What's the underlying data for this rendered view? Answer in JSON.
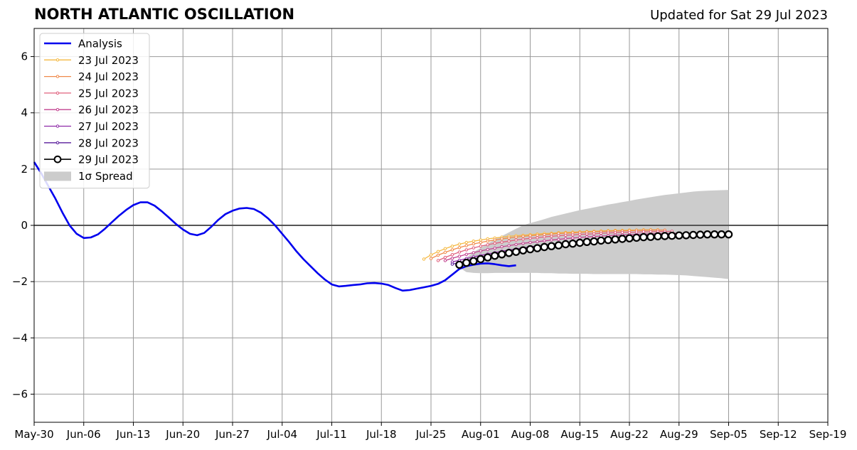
{
  "chart_data": {
    "type": "line",
    "title": "NORTH ATLANTIC OSCILLATION",
    "subtitle": "Updated for Sat 29 Jul 2023",
    "xlabel": "",
    "ylabel": "",
    "ylim": [
      -7,
      7
    ],
    "xlim": [
      "2023-05-30",
      "2023-09-19"
    ],
    "x_tick_labels": [
      "May-30",
      "Jun-06",
      "Jun-13",
      "Jun-20",
      "Jun-27",
      "Jul-04",
      "Jul-11",
      "Jul-18",
      "Jul-25",
      "Aug-01",
      "Aug-08",
      "Aug-15",
      "Aug-22",
      "Aug-29",
      "Sep-05",
      "Sep-12",
      "Sep-19"
    ],
    "y_ticks": [
      -6,
      -4,
      -2,
      0,
      2,
      4,
      6
    ],
    "y_tick_labels": [
      "−6",
      "−4",
      "−2",
      "0",
      "2",
      "4",
      "6"
    ],
    "grid": true,
    "legend_placement": "top-left",
    "colors": {
      "analysis": "#0000ee",
      "spread": "#cccccc",
      "grid": "#999999",
      "zero_line": "#555555"
    },
    "analysis": {
      "name": "Analysis",
      "start_date": "2023-05-30",
      "values": [
        2.25,
        1.85,
        1.4,
        0.95,
        0.45,
        0.0,
        -0.3,
        -0.45,
        -0.43,
        -0.32,
        -0.12,
        0.12,
        0.35,
        0.55,
        0.72,
        0.82,
        0.82,
        0.7,
        0.5,
        0.28,
        0.05,
        -0.15,
        -0.3,
        -0.35,
        -0.27,
        -0.05,
        0.2,
        0.4,
        0.52,
        0.6,
        0.62,
        0.58,
        0.45,
        0.25,
        0.0,
        -0.3,
        -0.6,
        -0.92,
        -1.2,
        -1.45,
        -1.7,
        -1.92,
        -2.1,
        -2.17,
        -2.15,
        -2.12,
        -2.1,
        -2.06,
        -2.05,
        -2.07,
        -2.12,
        -2.23,
        -2.32,
        -2.3,
        -2.25,
        -2.2,
        -2.15,
        -2.08,
        -1.95,
        -1.75,
        -1.55,
        -1.45,
        -1.4,
        -1.36,
        -1.35,
        -1.38,
        -1.42,
        -1.45,
        -1.42
      ]
    },
    "spread": {
      "name": "1σ Spread",
      "start_date": "2023-07-29",
      "upper": [
        -1.35,
        -1.15,
        -0.95,
        -0.8,
        -0.65,
        -0.5,
        -0.38,
        -0.25,
        -0.12,
        0.0,
        0.08,
        0.15,
        0.22,
        0.3,
        0.36,
        0.42,
        0.48,
        0.54,
        0.59,
        0.64,
        0.69,
        0.74,
        0.78,
        0.83,
        0.87,
        0.92,
        0.96,
        1.0,
        1.04,
        1.08,
        1.11,
        1.14,
        1.17,
        1.2,
        1.22,
        1.23,
        1.24,
        1.25,
        1.26
      ],
      "lower": [
        -1.5,
        -1.66,
        -1.69,
        -1.7,
        -1.7,
        -1.69,
        -1.69,
        -1.69,
        -1.69,
        -1.69,
        -1.69,
        -1.69,
        -1.7,
        -1.7,
        -1.71,
        -1.71,
        -1.72,
        -1.72,
        -1.72,
        -1.73,
        -1.73,
        -1.73,
        -1.73,
        -1.73,
        -1.73,
        -1.73,
        -1.74,
        -1.74,
        -1.75,
        -1.75,
        -1.76,
        -1.77,
        -1.78,
        -1.8,
        -1.82,
        -1.84,
        -1.86,
        -1.88,
        -1.91
      ]
    },
    "forecasts": [
      {
        "name": "23 Jul 2023",
        "color": "#f5b942",
        "start_date": "2023-07-24",
        "values": [
          -1.2,
          -1.05,
          -0.93,
          -0.83,
          -0.74,
          -0.67,
          -0.61,
          -0.56,
          -0.52,
          -0.48,
          -0.45,
          -0.42,
          -0.39,
          -0.37,
          -0.35,
          -0.33,
          -0.31,
          -0.29,
          -0.28,
          -0.26,
          -0.25,
          -0.24,
          -0.23,
          -0.22,
          -0.21,
          -0.2,
          -0.19,
          -0.18,
          -0.18,
          -0.17,
          -0.17,
          -0.16,
          -0.16,
          -0.16
        ]
      },
      {
        "name": "24 Jul 2023",
        "color": "#f08a4b",
        "start_date": "2023-07-25",
        "values": [
          -1.18,
          -1.06,
          -0.96,
          -0.87,
          -0.79,
          -0.72,
          -0.66,
          -0.61,
          -0.56,
          -0.52,
          -0.48,
          -0.45,
          -0.42,
          -0.39,
          -0.37,
          -0.35,
          -0.33,
          -0.31,
          -0.29,
          -0.28,
          -0.27,
          -0.25,
          -0.24,
          -0.23,
          -0.22,
          -0.21,
          -0.2,
          -0.2,
          -0.19,
          -0.18,
          -0.18,
          -0.17,
          -0.17,
          -0.17
        ]
      },
      {
        "name": "25 Jul 2023",
        "color": "#e0607e",
        "start_date": "2023-07-26",
        "values": [
          -1.25,
          -1.14,
          -1.04,
          -0.95,
          -0.87,
          -0.8,
          -0.74,
          -0.69,
          -0.64,
          -0.6,
          -0.56,
          -0.52,
          -0.49,
          -0.46,
          -0.44,
          -0.41,
          -0.39,
          -0.37,
          -0.35,
          -0.34,
          -0.32,
          -0.31,
          -0.3,
          -0.28,
          -0.27,
          -0.26,
          -0.25,
          -0.25,
          -0.24,
          -0.23,
          -0.23,
          -0.22,
          -0.22,
          -0.21
        ]
      },
      {
        "name": "26 Jul 2023",
        "color": "#c2428f",
        "start_date": "2023-07-27",
        "values": [
          -1.25,
          -1.17,
          -1.1,
          -1.03,
          -0.97,
          -0.91,
          -0.86,
          -0.81,
          -0.76,
          -0.72,
          -0.68,
          -0.64,
          -0.61,
          -0.58,
          -0.55,
          -0.52,
          -0.5,
          -0.47,
          -0.45,
          -0.43,
          -0.41,
          -0.4,
          -0.38,
          -0.37,
          -0.35,
          -0.34,
          -0.33,
          -0.32,
          -0.31,
          -0.3,
          -0.29,
          -0.29,
          -0.28,
          -0.28
        ]
      },
      {
        "name": "27 Jul 2023",
        "color": "#8e2aa8",
        "start_date": "2023-07-28",
        "values": [
          -1.3,
          -1.24,
          -1.18,
          -1.12,
          -1.07,
          -1.02,
          -0.97,
          -0.92,
          -0.88,
          -0.84,
          -0.8,
          -0.76,
          -0.73,
          -0.7,
          -0.67,
          -0.64,
          -0.61,
          -0.58,
          -0.56,
          -0.54,
          -0.52,
          -0.5,
          -0.48,
          -0.46,
          -0.44,
          -0.43,
          -0.41,
          -0.4,
          -0.39,
          -0.38,
          -0.37,
          -0.36,
          -0.35,
          -0.35
        ]
      },
      {
        "name": "28 Jul 2023",
        "color": "#5a1e9c",
        "start_date": "2023-07-28",
        "values": [
          -1.38,
          -1.32,
          -1.26,
          -1.2,
          -1.14,
          -1.09,
          -1.04,
          -0.99,
          -0.95,
          -0.91,
          -0.87,
          -0.83,
          -0.79,
          -0.76,
          -0.73,
          -0.7,
          -0.67,
          -0.64,
          -0.62,
          -0.59,
          -0.57,
          -0.55,
          -0.53,
          -0.51,
          -0.49,
          -0.47,
          -0.46,
          -0.44,
          -0.43,
          -0.42,
          -0.41,
          -0.4,
          -0.39,
          -0.38,
          -0.38
        ]
      },
      {
        "name": "29 Jul 2023",
        "color": "#000000",
        "start_date": "2023-07-29",
        "marker": "open-circle",
        "values": [
          -1.4,
          -1.33,
          -1.27,
          -1.2,
          -1.14,
          -1.08,
          -1.03,
          -0.98,
          -0.94,
          -0.89,
          -0.85,
          -0.81,
          -0.77,
          -0.74,
          -0.71,
          -0.67,
          -0.65,
          -0.62,
          -0.59,
          -0.57,
          -0.54,
          -0.52,
          -0.5,
          -0.48,
          -0.46,
          -0.44,
          -0.42,
          -0.41,
          -0.39,
          -0.38,
          -0.37,
          -0.36,
          -0.35,
          -0.34,
          -0.33,
          -0.32,
          -0.32,
          -0.32,
          -0.32
        ]
      }
    ]
  }
}
